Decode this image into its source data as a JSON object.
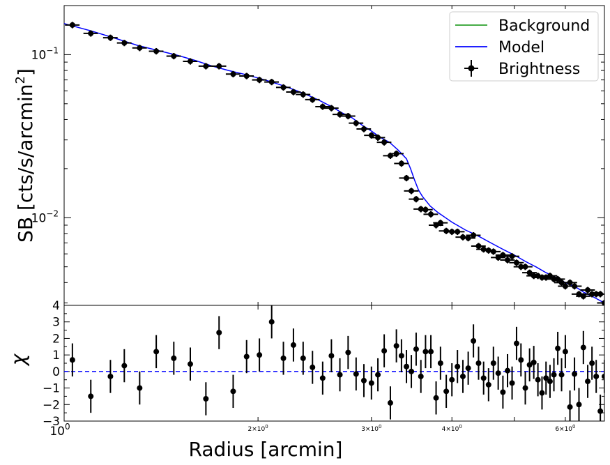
{
  "chart_data": [
    {
      "type": "scatter",
      "panel": "surface-brightness",
      "ylabel": "SB [cts/s/arcmin2]",
      "ylabel_prefix": "SB [cts/s/arcmin",
      "ylabel_sup": "2",
      "ylabel_suffix": "]",
      "xscale": "log",
      "yscale": "log",
      "xlim": [
        1.0,
        6.9
      ],
      "ylim": [
        0.0029,
        0.2
      ],
      "y_ticks": [
        {
          "value": 0.1,
          "base": "10",
          "exp": "−1"
        },
        {
          "value": 0.01,
          "base": "10",
          "exp": "−2"
        }
      ],
      "legend": {
        "position": "top-right",
        "entries": [
          {
            "label": "Background",
            "color": "#2ca02c",
            "kind": "line"
          },
          {
            "label": "Model",
            "color": "#0000ff",
            "kind": "line"
          },
          {
            "label": "Brightness",
            "color": "#000000",
            "kind": "errorbar"
          }
        ]
      },
      "series": [
        {
          "name": "Brightness",
          "color": "#000000",
          "x": [
            1.03,
            1.1,
            1.18,
            1.24,
            1.31,
            1.39,
            1.48,
            1.57,
            1.66,
            1.74,
            1.83,
            1.92,
            2.01,
            2.1,
            2.19,
            2.27,
            2.35,
            2.43,
            2.52,
            2.6,
            2.68,
            2.76,
            2.84,
            2.92,
            3.0,
            3.07,
            3.14,
            3.21,
            3.28,
            3.34,
            3.4,
            3.46,
            3.52,
            3.58,
            3.64,
            3.71,
            3.78,
            3.84,
            3.92,
            4.0,
            4.08,
            4.16,
            4.24,
            4.32,
            4.4,
            4.48,
            4.56,
            4.64,
            4.72,
            4.8,
            4.88,
            4.96,
            5.04,
            5.12,
            5.2,
            5.28,
            5.36,
            5.44,
            5.52,
            5.6,
            5.68,
            5.76,
            5.84,
            5.92,
            6.0,
            6.1,
            6.2,
            6.3,
            6.4,
            6.5,
            6.6,
            6.7,
            6.8,
            6.9
          ],
          "y": [
            0.152,
            0.135,
            0.127,
            0.118,
            0.11,
            0.105,
            0.098,
            0.091,
            0.085,
            0.085,
            0.076,
            0.074,
            0.07,
            0.068,
            0.063,
            0.059,
            0.057,
            0.053,
            0.048,
            0.047,
            0.043,
            0.042,
            0.038,
            0.035,
            0.032,
            0.031,
            0.029,
            0.024,
            0.0247,
            0.0215,
            0.0175,
            0.0146,
            0.013,
            0.0113,
            0.0112,
            0.0105,
            0.009,
            0.0093,
            0.0083,
            0.0082,
            0.0082,
            0.0076,
            0.0075,
            0.0078,
            0.0067,
            0.0064,
            0.0063,
            0.0062,
            0.0057,
            0.0059,
            0.0055,
            0.0058,
            0.0053,
            0.005,
            0.005,
            0.0046,
            0.0044,
            0.0044,
            0.0043,
            0.0043,
            0.0044,
            0.0042,
            0.0042,
            0.004,
            0.0038,
            0.004,
            0.0038,
            0.0034,
            0.0033,
            0.0036,
            0.0034,
            0.0034,
            0.0034,
            0.003
          ],
          "x_err_rel": 0.026,
          "y_err_rel": 0.045
        },
        {
          "name": "Model",
          "color": "#0000ff",
          "x": [
            1.0,
            1.1,
            1.2,
            1.3,
            1.4,
            1.5,
            1.6,
            1.7,
            1.8,
            1.9,
            2.0,
            2.1,
            2.2,
            2.3,
            2.4,
            2.5,
            2.6,
            2.7,
            2.8,
            2.9,
            3.0,
            3.1,
            3.2,
            3.3,
            3.4,
            3.45,
            3.5,
            3.55,
            3.6,
            3.7,
            3.8,
            4.0,
            4.2,
            4.4,
            4.6,
            4.8,
            5.0,
            5.2,
            5.4,
            5.6,
            5.8,
            6.0,
            6.2,
            6.4,
            6.6,
            6.9
          ],
          "y": [
            0.155,
            0.14,
            0.126,
            0.114,
            0.106,
            0.099,
            0.092,
            0.085,
            0.08,
            0.076,
            0.072,
            0.068,
            0.064,
            0.06,
            0.056,
            0.052,
            0.048,
            0.044,
            0.041,
            0.037,
            0.034,
            0.031,
            0.029,
            0.026,
            0.023,
            0.02,
            0.017,
            0.0148,
            0.0135,
            0.0118,
            0.0108,
            0.0094,
            0.0084,
            0.0077,
            0.007,
            0.0064,
            0.0059,
            0.0054,
            0.005,
            0.0046,
            0.0043,
            0.004,
            0.0038,
            0.0035,
            0.0033,
            0.003
          ]
        },
        {
          "name": "Background",
          "color": "#2ca02c",
          "x": [],
          "y": []
        }
      ]
    },
    {
      "type": "scatter",
      "panel": "residuals",
      "xlabel": "Radius [arcmin]",
      "ylabel": "χ",
      "xscale": "log",
      "xlim": [
        1.0,
        6.9
      ],
      "ylim": [
        -3,
        4
      ],
      "y_ticks": [
        -3,
        -2,
        -1,
        0,
        1,
        2,
        3,
        4
      ],
      "x_ticks": [
        {
          "value": 1,
          "base": "10",
          "exp": "0",
          "size": "large"
        },
        {
          "value": 2,
          "base": "2×10",
          "exp": "0",
          "size": "small"
        },
        {
          "value": 3,
          "base": "3×10",
          "exp": "0",
          "size": "small"
        },
        {
          "value": 4,
          "base": "4×10",
          "exp": "0",
          "size": "small"
        },
        {
          "value": 6,
          "base": "6×10",
          "exp": "0",
          "size": "small"
        }
      ],
      "zero_line": {
        "value": 0,
        "color": "#0000ff",
        "style": "dashed"
      },
      "series": [
        {
          "name": "chi",
          "color": "#000000",
          "x": [
            1.03,
            1.1,
            1.18,
            1.24,
            1.31,
            1.39,
            1.48,
            1.57,
            1.66,
            1.74,
            1.83,
            1.92,
            2.01,
            2.1,
            2.19,
            2.27,
            2.35,
            2.43,
            2.52,
            2.6,
            2.68,
            2.76,
            2.84,
            2.92,
            3.0,
            3.07,
            3.14,
            3.21,
            3.28,
            3.34,
            3.4,
            3.46,
            3.52,
            3.58,
            3.64,
            3.71,
            3.78,
            3.84,
            3.92,
            4.0,
            4.08,
            4.16,
            4.24,
            4.32,
            4.4,
            4.48,
            4.56,
            4.64,
            4.72,
            4.8,
            4.88,
            4.96,
            5.04,
            5.12,
            5.2,
            5.28,
            5.36,
            5.44,
            5.52,
            5.6,
            5.68,
            5.76,
            5.84,
            5.92,
            6.0,
            6.1,
            6.2,
            6.3,
            6.4,
            6.5,
            6.6,
            6.7,
            6.8,
            6.9
          ],
          "values": [
            0.7,
            -1.5,
            -0.3,
            0.35,
            -1.0,
            1.2,
            0.8,
            0.45,
            -1.65,
            2.35,
            -1.2,
            0.9,
            1.0,
            3.0,
            0.8,
            1.6,
            0.8,
            0.25,
            -0.4,
            0.95,
            -0.2,
            1.15,
            -0.15,
            -0.55,
            -0.7,
            -0.2,
            1.25,
            -1.9,
            1.55,
            0.95,
            0.3,
            0.0,
            1.35,
            -0.3,
            1.2,
            1.2,
            -1.6,
            0.5,
            -1.2,
            -0.5,
            0.3,
            -0.3,
            0.2,
            1.85,
            0.5,
            -0.4,
            -0.8,
            0.5,
            -0.1,
            -1.25,
            0.05,
            -0.7,
            1.7,
            0.7,
            -1.0,
            0.4,
            0.55,
            -0.5,
            -1.3,
            -0.4,
            -0.6,
            -0.2,
            1.4,
            -0.2,
            1.2,
            -2.15,
            -0.15,
            -2.0,
            1.45,
            -0.6,
            0.5,
            -0.3,
            -2.4,
            -0.3
          ],
          "err": 1.0
        }
      ]
    }
  ]
}
